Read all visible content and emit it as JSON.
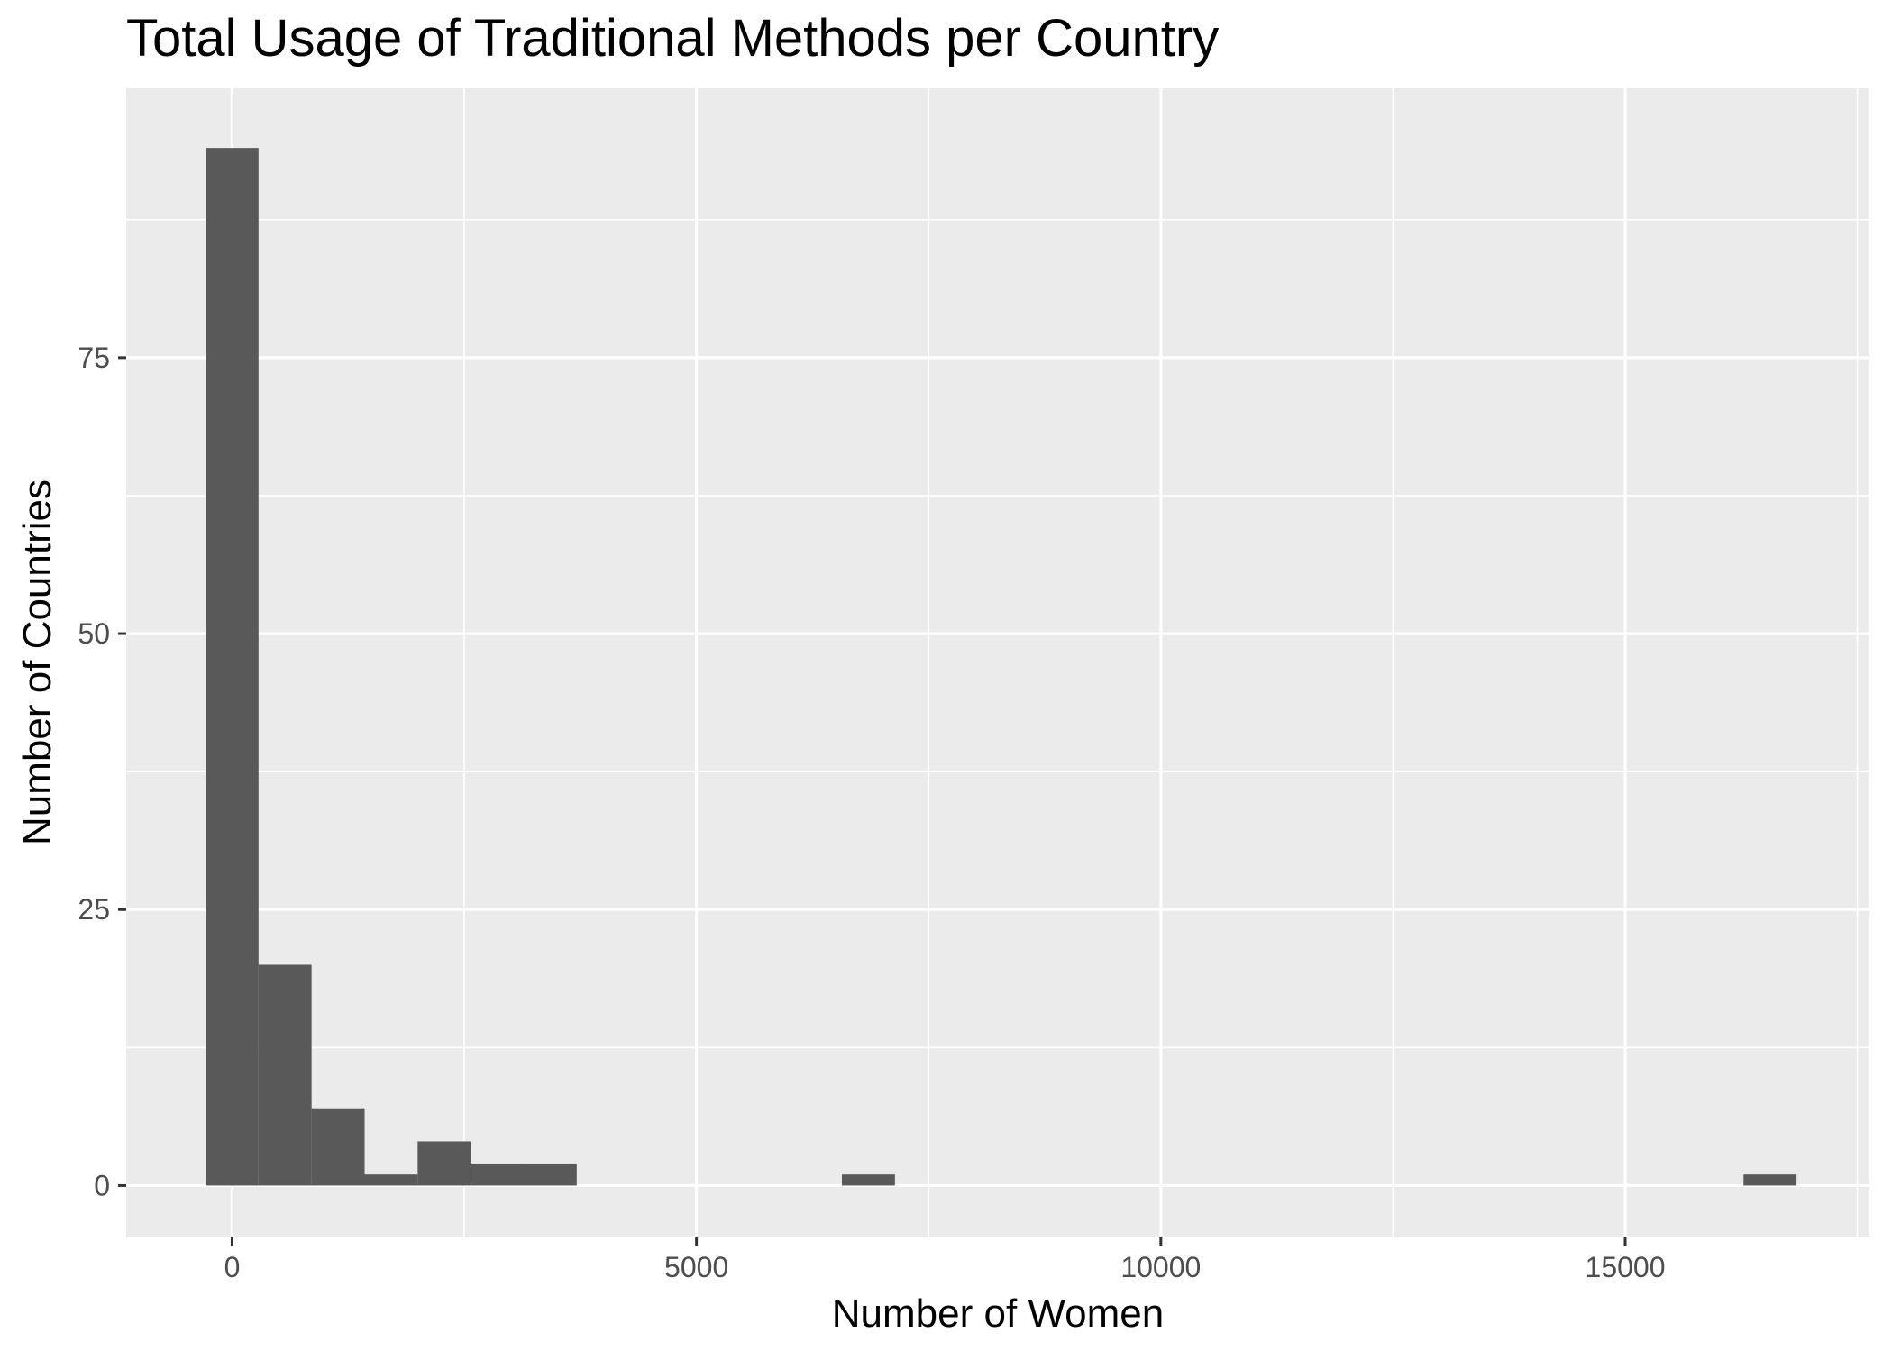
{
  "chart_data": {
    "type": "histogram",
    "title": "Total Usage of Traditional Methods per Country",
    "xlabel": "Number of Women",
    "ylabel": "Number of Countries",
    "xlim": [
      -1140,
      17630
    ],
    "ylim": [
      -4.7,
      99.4
    ],
    "x_ticks": [
      0,
      5000,
      10000,
      15000
    ],
    "y_ticks": [
      0,
      25,
      50,
      75
    ],
    "bin_width": 571,
    "bins": [
      {
        "x0": -286,
        "x1": 285,
        "count": 94
      },
      {
        "x0": 285,
        "x1": 856,
        "count": 20
      },
      {
        "x0": 856,
        "x1": 1427,
        "count": 7
      },
      {
        "x0": 1427,
        "x1": 1998,
        "count": 1
      },
      {
        "x0": 1998,
        "x1": 2569,
        "count": 4
      },
      {
        "x0": 2569,
        "x1": 3140,
        "count": 2
      },
      {
        "x0": 3140,
        "x1": 3711,
        "count": 2
      },
      {
        "x0": 6566,
        "x1": 7137,
        "count": 1
      },
      {
        "x0": 16274,
        "x1": 16845,
        "count": 1
      }
    ],
    "grid": true,
    "colors": {
      "panel": "#ebebeb",
      "grid": "#ffffff",
      "bar": "#595959"
    }
  }
}
